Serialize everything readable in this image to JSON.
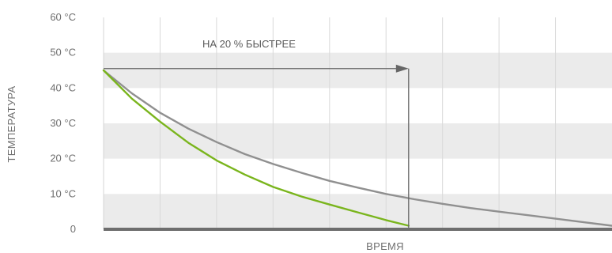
{
  "chart_data": {
    "type": "line",
    "xlabel": "ВРЕМЯ",
    "ylabel": "ТЕМПЕРАТУРА",
    "ylim": [
      0,
      60
    ],
    "xlim": [
      0,
      9
    ],
    "y_ticks": [
      {
        "value": 0,
        "label": "0"
      },
      {
        "value": 10,
        "label": "10 °C"
      },
      {
        "value": 20,
        "label": "20 °C"
      },
      {
        "value": 30,
        "label": "30 °C"
      },
      {
        "value": 40,
        "label": "40 °C"
      },
      {
        "value": 50,
        "label": "50 °C"
      },
      {
        "value": 60,
        "label": "60 °C"
      }
    ],
    "x_gridlines": [
      1,
      2,
      3,
      4,
      5,
      6,
      7,
      8
    ],
    "grid": true,
    "series": [
      {
        "color": "#909090",
        "x": [
          0,
          0.5,
          1,
          1.5,
          2,
          2.5,
          3,
          3.5,
          4,
          4.5,
          5,
          5.5,
          6,
          6.5,
          7,
          7.5,
          8,
          8.5,
          9
        ],
        "y": [
          45,
          38.5,
          33,
          28.5,
          24.7,
          21.3,
          18.5,
          16,
          13.7,
          11.8,
          10,
          8.5,
          7.2,
          6,
          5,
          4,
          3,
          2,
          1
        ]
      },
      {
        "color": "#7ab51d",
        "x": [
          0,
          0.5,
          1,
          1.5,
          2,
          2.5,
          3,
          3.5,
          4,
          4.5,
          5,
          5.4
        ],
        "y": [
          45,
          37,
          30.5,
          24.5,
          19.5,
          15.5,
          12,
          9.3,
          7,
          4.8,
          2.6,
          1
        ]
      }
    ],
    "annotation": {
      "text": "НА 20 % БЫСТРЕЕ",
      "arrow_from": {
        "x": 0,
        "y": 45.5
      },
      "arrow_to": {
        "x": 5.4,
        "y": 45.5
      },
      "drop_line_x": 5.4
    },
    "colors": {
      "band": "#ebebeb",
      "gridline": "#ffffff",
      "axis_line": "#6e6e6e",
      "annotation_line": "#666666"
    }
  }
}
